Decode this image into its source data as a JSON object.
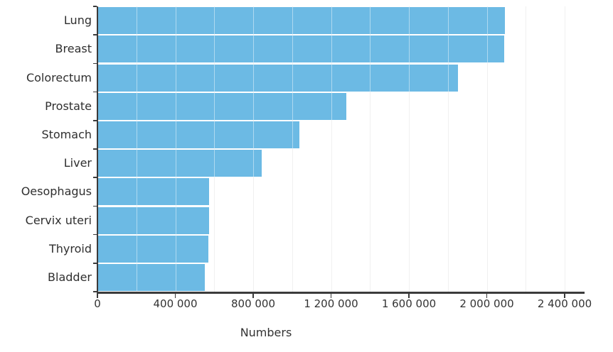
{
  "chart_data": {
    "type": "bar",
    "orientation": "horizontal",
    "title": "",
    "xlabel": "Numbers",
    "ylabel": "",
    "categories": [
      "Lung",
      "Breast",
      "Colorectum",
      "Prostate",
      "Stomach",
      "Liver",
      "Oesophagus",
      "Cervix uteri",
      "Thyroid",
      "Bladder"
    ],
    "values": [
      2093000,
      2089000,
      1850000,
      1276000,
      1034000,
      841000,
      572000,
      570000,
      567000,
      549000
    ],
    "xlim": [
      0,
      2500000
    ],
    "x_ticks": [
      0,
      400000,
      800000,
      1200000,
      1600000,
      2000000,
      2400000
    ],
    "x_tick_labels": [
      "0",
      "400 000",
      "800 000",
      "1 200 000",
      "1 600 000",
      "2 000 000",
      "2 400 000"
    ],
    "gridline_interval": 200000,
    "grid": true,
    "legend": false,
    "colors": {
      "bar": "#6cbae4",
      "axis": "#3b3b3b",
      "gridline": "#e3e3e3",
      "text": "#333333"
    }
  }
}
